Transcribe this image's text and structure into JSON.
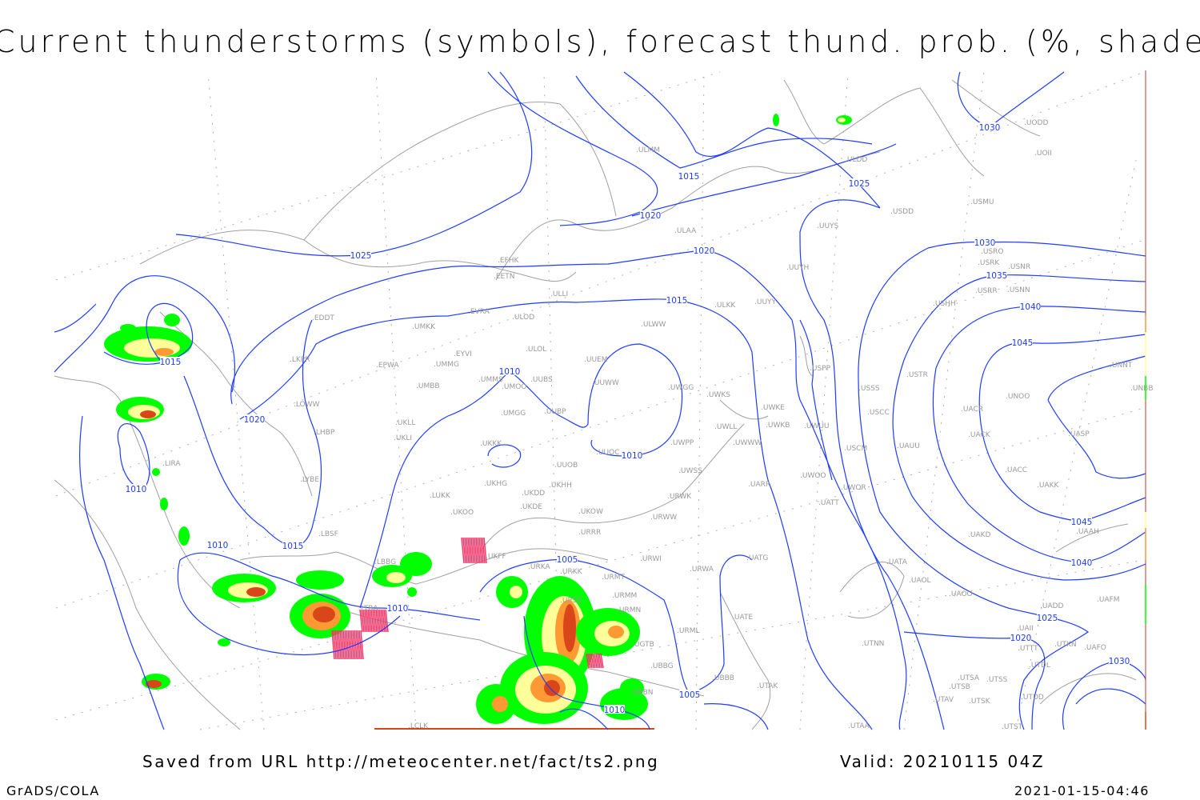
{
  "title": "Current thunderstorms (symbols), forecast thund. prob. (%, shaded)",
  "footer": {
    "source": "Saved from URL http://meteocenter.net/fact/ts2.png",
    "valid": "Valid: 20210115 04Z",
    "software": "GrADS/COLA",
    "timestamp": "2021-01-15-04:46"
  },
  "colors": {
    "isobar": "#1f3cff",
    "coastline": "#a0a0a0",
    "prob_low": "#00ff00",
    "prob_mid": "#ffff99",
    "prob_high": "#ff9933",
    "prob_max": "#d9461a",
    "thunderstorm_symbol": "#ff3366"
  },
  "map": {
    "isobar_labels": [
      "1025",
      "1020",
      "1015",
      "1015",
      "1020",
      "1010",
      "1015",
      "1010",
      "1010",
      "1010",
      "1005",
      "1010",
      "1005",
      "1010",
      "1015",
      "1020",
      "1025",
      "1030",
      "1030",
      "1035",
      "1040",
      "1045",
      "1045",
      "1040",
      "1025",
      "1020",
      "1030"
    ],
    "stations": [
      "EDDT",
      "LKPR",
      "LOWW",
      "LHBP",
      "LIRA",
      "LYBE",
      "LBSF",
      "LBBG",
      "LTBA",
      "LCLK",
      "EPWA",
      "UMKK",
      "EVRA",
      "EFHK",
      "EETN",
      "ULLI",
      "ULOD",
      "ULOL",
      "EYVI",
      "UMMG",
      "UMMS",
      "UMOO",
      "UMBB",
      "UUBS",
      "UMGG",
      "UUBP",
      "UKLL",
      "UKLI",
      "UKKK",
      "UUEM",
      "UUWW",
      "ULMM",
      "ULAA",
      "ULWW",
      "ULKK",
      "UUYY",
      "UUYH",
      "UUYS",
      "ULDD",
      "USDD",
      "USMU",
      "UODD",
      "UOII",
      "UWGG",
      "UWKS",
      "UWKE",
      "UWKB",
      "UWUU",
      "UWLL",
      "UWPP",
      "UWWW",
      "UUOC",
      "UUOB",
      "UKHG",
      "UKDD",
      "UKHH",
      "UKDE",
      "UKOO",
      "LUKK",
      "UKOW",
      "URRR",
      "UWSS",
      "URWK",
      "URWW",
      "UARR",
      "UWOO",
      "UWOR",
      "UATT",
      "USSS",
      "USCC",
      "USCM",
      "UAUU",
      "USTR",
      "USPP",
      "USHH",
      "USRR",
      "USNN",
      "USRK",
      "USNR",
      "USRO",
      "UNOO",
      "UACR",
      "UACK",
      "UASP",
      "UNNT",
      "UNBB",
      "UACC",
      "UAKK",
      "UAKD",
      "UAAH",
      "UATA",
      "UAOL",
      "UAOO",
      "UADD",
      "UAII",
      "UTTT",
      "UTKN",
      "UAFO",
      "UAFM",
      "UTDL",
      "UTSA",
      "UTSS",
      "UTSB",
      "UTAV",
      "UTSK",
      "UTDD",
      "UTNN",
      "UTAA",
      "UTST",
      "UKFF",
      "URKA",
      "URKK",
      "URMT",
      "URMM",
      "URMN",
      "URSS",
      "URWI",
      "URWA",
      "UATG",
      "UATE",
      "URML",
      "UGTB",
      "UBBG",
      "UBBN",
      "UBBB",
      "UTAK"
    ]
  }
}
